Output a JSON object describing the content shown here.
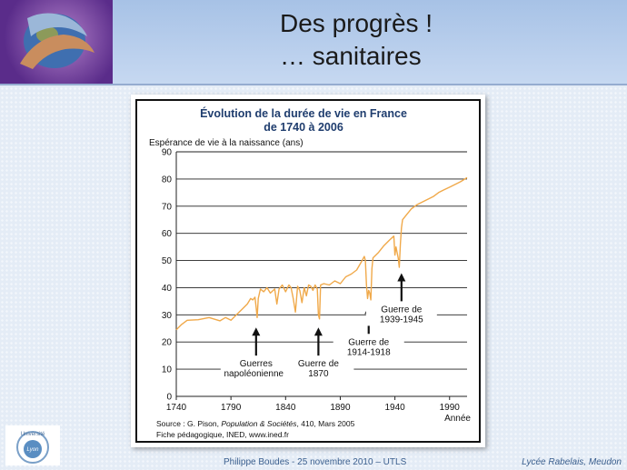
{
  "slide": {
    "title_line1": "Des progrès !",
    "title_line2": "… sanitaires",
    "footer_center": "Philippe Boudes  - 25 novembre 2010 – UTLS",
    "footer_right": "Lycée Rabelais, Meudon",
    "univ_logo_text": "Université",
    "univ_logo_inner": "Lyon"
  },
  "chart_data": {
    "type": "line",
    "title_line1": "Évolution de la durée de vie en France",
    "title_line2": "de 1740 à 2006",
    "ylabel": "Espérance de vie à la naissance (ans)",
    "xlabel": "Année",
    "xlim": [
      1740,
      2006
    ],
    "ylim": [
      0,
      90
    ],
    "x_ticks": [
      1740,
      1790,
      1840,
      1890,
      1940,
      1990
    ],
    "y_ticks": [
      0,
      10,
      20,
      30,
      40,
      50,
      60,
      70,
      80,
      90
    ],
    "grid": "horizontal",
    "line_color": "#f0a94a",
    "series": [
      {
        "values": [
          [
            1740,
            24.5
          ],
          [
            1745,
            26.5
          ],
          [
            1750,
            28
          ],
          [
            1760,
            28.2
          ],
          [
            1770,
            29
          ],
          [
            1780,
            27.8
          ],
          [
            1785,
            29
          ],
          [
            1790,
            28
          ],
          [
            1795,
            30
          ],
          [
            1800,
            32
          ],
          [
            1805,
            34
          ],
          [
            1808,
            36
          ],
          [
            1810,
            35.5
          ],
          [
            1812,
            36.5
          ],
          [
            1813,
            33
          ],
          [
            1814,
            29
          ],
          [
            1815,
            36
          ],
          [
            1817,
            39.5
          ],
          [
            1820,
            38.5
          ],
          [
            1823,
            40
          ],
          [
            1826,
            38
          ],
          [
            1830,
            39.5
          ],
          [
            1832,
            34
          ],
          [
            1834,
            39.5
          ],
          [
            1837,
            41
          ],
          [
            1840,
            38.5
          ],
          [
            1843,
            41
          ],
          [
            1845,
            40
          ],
          [
            1847,
            36
          ],
          [
            1849,
            31
          ],
          [
            1851,
            40.5
          ],
          [
            1853,
            39
          ],
          [
            1855,
            34.5
          ],
          [
            1857,
            40
          ],
          [
            1859,
            37
          ],
          [
            1861,
            41
          ],
          [
            1863,
            40.5
          ],
          [
            1865,
            39
          ],
          [
            1867,
            41
          ],
          [
            1869,
            39.5
          ],
          [
            1870,
            30
          ],
          [
            1871,
            28.5
          ],
          [
            1872,
            41
          ],
          [
            1875,
            41.5
          ],
          [
            1880,
            41
          ],
          [
            1885,
            42.5
          ],
          [
            1890,
            41.5
          ],
          [
            1895,
            44
          ],
          [
            1900,
            45
          ],
          [
            1905,
            46.5
          ],
          [
            1910,
            50
          ],
          [
            1912,
            51.5
          ],
          [
            1913,
            50
          ],
          [
            1914,
            41
          ],
          [
            1915,
            36
          ],
          [
            1916,
            39
          ],
          [
            1917,
            38
          ],
          [
            1918,
            35.5
          ],
          [
            1919,
            47
          ],
          [
            1920,
            51
          ],
          [
            1925,
            53
          ],
          [
            1930,
            55.5
          ],
          [
            1935,
            57.5
          ],
          [
            1939,
            59
          ],
          [
            1940,
            52
          ],
          [
            1941,
            55
          ],
          [
            1943,
            51
          ],
          [
            1944,
            47.5
          ],
          [
            1945,
            56
          ],
          [
            1946,
            62
          ],
          [
            1947,
            65
          ],
          [
            1950,
            66.5
          ],
          [
            1955,
            69
          ],
          [
            1960,
            70.5
          ],
          [
            1965,
            71.5
          ],
          [
            1970,
            72.5
          ],
          [
            1975,
            73.5
          ],
          [
            1980,
            75
          ],
          [
            1985,
            76
          ],
          [
            1990,
            77
          ],
          [
            1995,
            78
          ],
          [
            2000,
            79
          ],
          [
            2006,
            80.5
          ]
        ]
      }
    ],
    "annotations": [
      {
        "lines": [
          "Guerres",
          "napoléoniennes"
        ],
        "arrow_x": 1813,
        "arrow_from_y": 15,
        "arrow_to_y": 25
      },
      {
        "lines": [
          "Guerre de",
          "1870"
        ],
        "arrow_x": 1870,
        "arrow_from_y": 15,
        "arrow_to_y": 25
      },
      {
        "lines": [
          "Guerre de",
          "1914-1918"
        ],
        "arrow_x": 1916,
        "arrow_from_y": 23,
        "arrow_to_y": 33
      },
      {
        "lines": [
          "Guerre de",
          "1939-1945"
        ],
        "arrow_x": 1946,
        "arrow_from_y": 35,
        "arrow_to_y": 45
      }
    ],
    "source_line1_prefix": "Source : G. Pison, ",
    "source_line1_italic": "Population & Sociétés",
    "source_line1_suffix": ", 410, Mars 2005",
    "source_line2": "Fiche pédagogique, INED, www.ined.fr"
  }
}
